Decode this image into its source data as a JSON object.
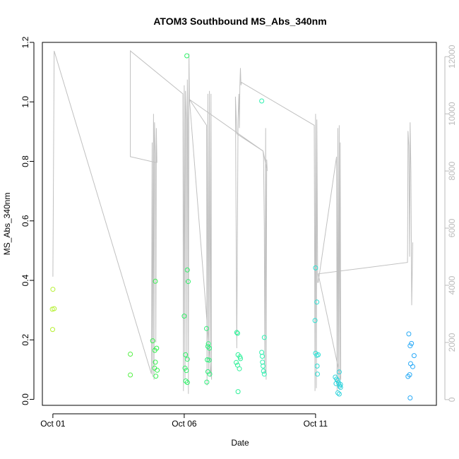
{
  "chart_data": {
    "type": "scatter",
    "title": "ATOM3 Southbound MS_Abs_340nm",
    "xlabel": "Date",
    "ylabel": "MS_Abs_340nm",
    "x_ticks": [
      {
        "label": "Oct 01",
        "x": 1.0
      },
      {
        "label": "Oct 06",
        "x": 6.0
      },
      {
        "label": "Oct 11",
        "x": 11.0
      }
    ],
    "xlim": [
      0.6,
      15.6
    ],
    "ylim": [
      -0.02,
      1.2
    ],
    "y_ticks": [
      0.0,
      0.2,
      0.4,
      0.6,
      0.8,
      1.0,
      1.2
    ],
    "y2lim": [
      -200,
      12500
    ],
    "y2_ticks": [
      0,
      2000,
      4000,
      6000,
      8000,
      10000,
      12000
    ],
    "grid": false,
    "colors": {
      "secondary_line": "#c0c0c0",
      "secondary_axis": "#bbbbbb",
      "point_start": "#b6f030",
      "point_mid": "#30f050",
      "point_mid2": "#30f0c8",
      "point_end": "#28a8f8",
      "axis": "#000000"
    },
    "series": [
      {
        "points": [
          {
            "x": 1.0,
            "y": 0.37
          },
          {
            "x": 0.98,
            "y": 0.303
          },
          {
            "x": 1.05,
            "y": 0.305
          },
          {
            "x": 0.99,
            "y": 0.235
          },
          {
            "x": 3.95,
            "y": 0.152
          },
          {
            "x": 3.95,
            "y": 0.082
          },
          {
            "x": 4.8,
            "y": 0.197
          },
          {
            "x": 4.9,
            "y": 0.397
          },
          {
            "x": 4.88,
            "y": 0.165
          },
          {
            "x": 4.95,
            "y": 0.172
          },
          {
            "x": 4.9,
            "y": 0.125
          },
          {
            "x": 4.87,
            "y": 0.105
          },
          {
            "x": 4.97,
            "y": 0.098
          },
          {
            "x": 4.92,
            "y": 0.078
          },
          {
            "x": 6.0,
            "y": 0.28
          },
          {
            "x": 6.1,
            "y": 1.155
          },
          {
            "x": 6.12,
            "y": 0.435
          },
          {
            "x": 6.15,
            "y": 0.396
          },
          {
            "x": 6.05,
            "y": 0.15
          },
          {
            "x": 6.12,
            "y": 0.135
          },
          {
            "x": 6.03,
            "y": 0.105
          },
          {
            "x": 6.08,
            "y": 0.097
          },
          {
            "x": 6.06,
            "y": 0.062
          },
          {
            "x": 6.12,
            "y": 0.057
          },
          {
            "x": 6.85,
            "y": 0.238
          },
          {
            "x": 6.92,
            "y": 0.187
          },
          {
            "x": 6.9,
            "y": 0.178
          },
          {
            "x": 6.96,
            "y": 0.172
          },
          {
            "x": 6.88,
            "y": 0.133
          },
          {
            "x": 6.95,
            "y": 0.132
          },
          {
            "x": 6.9,
            "y": 0.093
          },
          {
            "x": 6.97,
            "y": 0.085
          },
          {
            "x": 6.86,
            "y": 0.058
          },
          {
            "x": 8.0,
            "y": 0.225
          },
          {
            "x": 8.03,
            "y": 0.222
          },
          {
            "x": 8.05,
            "y": 0.15
          },
          {
            "x": 8.12,
            "y": 0.143
          },
          {
            "x": 8.14,
            "y": 0.137
          },
          {
            "x": 7.98,
            "y": 0.124
          },
          {
            "x": 8.03,
            "y": 0.115
          },
          {
            "x": 8.1,
            "y": 0.103
          },
          {
            "x": 8.05,
            "y": 0.026
          },
          {
            "x": 8.95,
            "y": 1.003
          },
          {
            "x": 8.95,
            "y": 0.158
          },
          {
            "x": 8.97,
            "y": 0.145
          },
          {
            "x": 9.05,
            "y": 0.208
          },
          {
            "x": 8.98,
            "y": 0.125
          },
          {
            "x": 9.0,
            "y": 0.112
          },
          {
            "x": 9.02,
            "y": 0.095
          },
          {
            "x": 9.05,
            "y": 0.085
          },
          {
            "x": 11.0,
            "y": 0.442
          },
          {
            "x": 11.05,
            "y": 0.327
          },
          {
            "x": 10.98,
            "y": 0.265
          },
          {
            "x": 11.0,
            "y": 0.155
          },
          {
            "x": 11.05,
            "y": 0.148
          },
          {
            "x": 11.1,
            "y": 0.15
          },
          {
            "x": 11.06,
            "y": 0.112
          },
          {
            "x": 11.07,
            "y": 0.085
          },
          {
            "x": 11.75,
            "y": 0.075
          },
          {
            "x": 11.8,
            "y": 0.068
          },
          {
            "x": 11.9,
            "y": 0.092
          },
          {
            "x": 11.85,
            "y": 0.063
          },
          {
            "x": 11.88,
            "y": 0.055
          },
          {
            "x": 11.95,
            "y": 0.05
          },
          {
            "x": 11.92,
            "y": 0.045
          },
          {
            "x": 11.78,
            "y": 0.053
          },
          {
            "x": 11.85,
            "y": 0.022
          },
          {
            "x": 11.9,
            "y": 0.018
          },
          {
            "x": 11.95,
            "y": 0.04
          },
          {
            "x": 14.55,
            "y": 0.22
          },
          {
            "x": 14.6,
            "y": 0.18
          },
          {
            "x": 14.65,
            "y": 0.188
          },
          {
            "x": 14.75,
            "y": 0.147
          },
          {
            "x": 14.62,
            "y": 0.12
          },
          {
            "x": 14.7,
            "y": 0.11
          },
          {
            "x": 14.58,
            "y": 0.083
          },
          {
            "x": 14.52,
            "y": 0.077
          },
          {
            "x": 14.6,
            "y": 0.005
          }
        ]
      }
    ],
    "secondary_series": [
      {
        "type": "line",
        "axis": "right",
        "points": [
          {
            "x": 1.0,
            "y": 4300
          },
          {
            "x": 1.05,
            "y": 12200
          },
          {
            "x": 4.75,
            "y": 900
          },
          {
            "x": 4.78,
            "y": 9000
          },
          {
            "x": 4.8,
            "y": 800
          },
          {
            "x": 4.83,
            "y": 10000
          },
          {
            "x": 4.85,
            "y": 700
          },
          {
            "x": 4.87,
            "y": 9700
          },
          {
            "x": 4.9,
            "y": 8600
          },
          {
            "x": 4.92,
            "y": 2000
          },
          {
            "x": 4.94,
            "y": 9500
          },
          {
            "x": 4.96,
            "y": 8300
          },
          {
            "x": 4.9,
            "y": 8300
          },
          {
            "x": 3.95,
            "y": 8500
          },
          {
            "x": 3.95,
            "y": 12200
          },
          {
            "x": 5.95,
            "y": 10700
          },
          {
            "x": 5.97,
            "y": 300
          },
          {
            "x": 6.0,
            "y": 11000
          },
          {
            "x": 6.03,
            "y": 700
          },
          {
            "x": 6.05,
            "y": 10800
          },
          {
            "x": 6.08,
            "y": 9800
          },
          {
            "x": 6.1,
            "y": 1400
          },
          {
            "x": 6.12,
            "y": 11200
          },
          {
            "x": 6.14,
            "y": 9800
          },
          {
            "x": 6.16,
            "y": 200
          },
          {
            "x": 6.18,
            "y": 12100
          },
          {
            "x": 6.2,
            "y": 10500
          },
          {
            "x": 6.85,
            "y": 9600
          },
          {
            "x": 6.87,
            "y": 500
          },
          {
            "x": 6.9,
            "y": 10700
          },
          {
            "x": 6.93,
            "y": 1000
          },
          {
            "x": 6.96,
            "y": 10800
          },
          {
            "x": 6.99,
            "y": 800
          },
          {
            "x": 7.02,
            "y": 10700
          },
          {
            "x": 7.04,
            "y": 700
          },
          {
            "x": 6.2,
            "y": 10500
          },
          {
            "x": 9.0,
            "y": 8700
          },
          {
            "x": 9.02,
            "y": 8500
          },
          {
            "x": 9.05,
            "y": 6000
          },
          {
            "x": 9.07,
            "y": 900
          },
          {
            "x": 9.1,
            "y": 9500
          },
          {
            "x": 9.12,
            "y": 700
          },
          {
            "x": 9.14,
            "y": 8400
          },
          {
            "x": 9.16,
            "y": 8000
          },
          {
            "x": 9.0,
            "y": 8700
          },
          {
            "x": 8.0,
            "y": 9300
          },
          {
            "x": 7.95,
            "y": 10600
          },
          {
            "x": 8.0,
            "y": 1800
          },
          {
            "x": 8.05,
            "y": 9800
          },
          {
            "x": 8.08,
            "y": 10700
          },
          {
            "x": 8.1,
            "y": 9500
          },
          {
            "x": 8.12,
            "y": 11000
          },
          {
            "x": 8.14,
            "y": 11600
          },
          {
            "x": 8.16,
            "y": 11000
          },
          {
            "x": 8.18,
            "y": 11100
          },
          {
            "x": 10.95,
            "y": 9600
          },
          {
            "x": 10.98,
            "y": 300
          },
          {
            "x": 11.0,
            "y": 10000
          },
          {
            "x": 11.03,
            "y": 400
          },
          {
            "x": 11.05,
            "y": 9800
          },
          {
            "x": 11.08,
            "y": 4100
          },
          {
            "x": 11.1,
            "y": 4100
          },
          {
            "x": 11.8,
            "y": 8500
          },
          {
            "x": 11.82,
            "y": 300
          },
          {
            "x": 11.85,
            "y": 9500
          },
          {
            "x": 11.87,
            "y": 400
          },
          {
            "x": 11.9,
            "y": 9600
          },
          {
            "x": 11.92,
            "y": 600
          },
          {
            "x": 11.94,
            "y": 9000
          },
          {
            "x": 11.96,
            "y": 700
          },
          {
            "x": 11.1,
            "y": 4400
          },
          {
            "x": 14.5,
            "y": 4800
          },
          {
            "x": 14.52,
            "y": 9400
          },
          {
            "x": 14.55,
            "y": 8900
          },
          {
            "x": 14.58,
            "y": 5000
          },
          {
            "x": 14.6,
            "y": 9700
          },
          {
            "x": 14.63,
            "y": 8000
          },
          {
            "x": 14.66,
            "y": 3300
          },
          {
            "x": 14.7,
            "y": 5500
          }
        ]
      }
    ]
  }
}
